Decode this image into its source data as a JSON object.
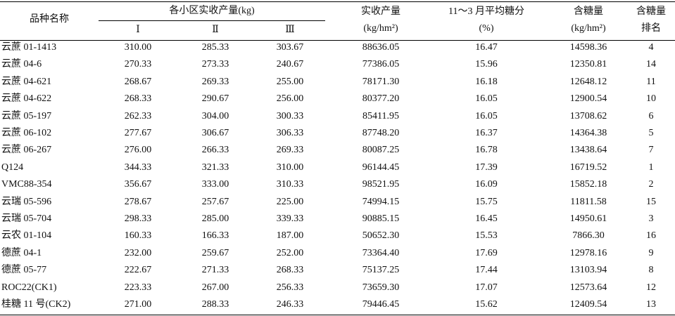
{
  "table": {
    "header": {
      "variety": "品种名称",
      "plot_yield": "各小区实收产量(kg)",
      "plots": [
        "Ⅰ",
        "Ⅱ",
        "Ⅲ"
      ],
      "yield": [
        "实收产量",
        "(kg/hm²)"
      ],
      "sugar": [
        "11～3 月平均糖分",
        "(%)"
      ],
      "sugar_yield": [
        "含糖量",
        "(kg/hm²)"
      ],
      "rank": [
        "含糖量",
        "排名"
      ]
    },
    "rows": [
      [
        "云蔗 01-1413",
        "310.00",
        "285.33",
        "303.67",
        "88636.05",
        "16.47",
        "14598.36",
        "4"
      ],
      [
        "云蔗 04-6",
        "270.33",
        "273.33",
        "240.67",
        "77386.05",
        "15.96",
        "12350.81",
        "14"
      ],
      [
        "云蔗 04-621",
        "268.67",
        "269.33",
        "255.00",
        "78171.30",
        "16.18",
        "12648.12",
        "11"
      ],
      [
        "云蔗 04-622",
        "268.33",
        "290.67",
        "256.00",
        "80377.20",
        "16.05",
        "12900.54",
        "10"
      ],
      [
        "云蔗 05-197",
        "262.33",
        "304.00",
        "300.33",
        "85411.95",
        "16.05",
        "13708.62",
        "6"
      ],
      [
        "云蔗 06-102",
        "277.67",
        "306.67",
        "306.33",
        "87748.20",
        "16.37",
        "14364.38",
        "5"
      ],
      [
        "云蔗 06-267",
        "276.00",
        "266.33",
        "269.33",
        "80087.25",
        "16.78",
        "13438.64",
        "7"
      ],
      [
        "Q124",
        "344.33",
        "321.33",
        "310.00",
        "96144.45",
        "17.39",
        "16719.52",
        "1"
      ],
      [
        "VMC88-354",
        "356.67",
        "333.00",
        "310.33",
        "98521.95",
        "16.09",
        "15852.18",
        "2"
      ],
      [
        "云瑞 05-596",
        "278.67",
        "257.67",
        "225.00",
        "74994.15",
        "15.75",
        "11811.58",
        "15"
      ],
      [
        "云瑞 05-704",
        "298.33",
        "285.00",
        "339.33",
        "90885.15",
        "16.45",
        "14950.61",
        "3"
      ],
      [
        "云农 01-104",
        "160.33",
        "166.33",
        "187.00",
        "50652.30",
        "15.53",
        "7866.30",
        "16"
      ],
      [
        "德蔗 04-1",
        "232.00",
        "259.67",
        "252.00",
        "73364.40",
        "17.69",
        "12978.16",
        "9"
      ],
      [
        "德蔗 05-77",
        "222.67",
        "271.33",
        "268.33",
        "75137.25",
        "17.44",
        "13103.94",
        "8"
      ],
      [
        "ROC22(CK1)",
        "223.33",
        "267.00",
        "256.33",
        "73659.30",
        "17.07",
        "12573.64",
        "12"
      ],
      [
        "桂糖 11 号(CK2)",
        "271.00",
        "288.33",
        "246.33",
        "79446.45",
        "15.62",
        "12409.54",
        "13"
      ]
    ]
  }
}
